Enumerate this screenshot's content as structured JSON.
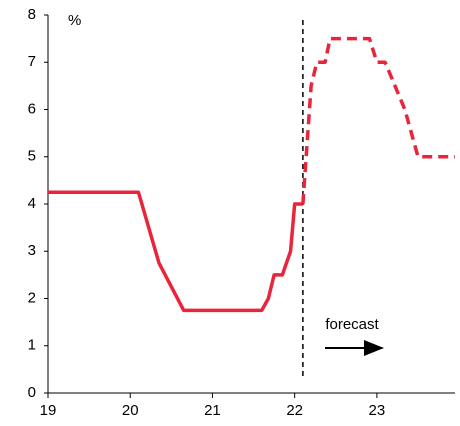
{
  "chart_data": {
    "type": "line",
    "y_unit_label": "%",
    "annotation": "forecast",
    "forecast_start": 22.1,
    "series": [
      {
        "color": "#e8253a",
        "dashed": false,
        "x": [
          19,
          20.1,
          20.35,
          20.65,
          21.6,
          21.68,
          21.75,
          21.85,
          21.95,
          22.0,
          22.1
        ],
        "values": [
          4.25,
          4.25,
          2.75,
          1.75,
          1.75,
          2,
          2.5,
          2.5,
          3,
          4,
          4
        ]
      },
      {
        "color": "#e8253a",
        "dashed": true,
        "x": [
          22.1,
          22.2,
          22.27,
          22.37,
          22.43,
          22.91,
          23.0,
          23.1,
          23.34,
          23.5,
          23.95
        ],
        "values": [
          4,
          6.5,
          7,
          7,
          7.5,
          7.5,
          7,
          7,
          6,
          5,
          5
        ]
      }
    ],
    "xlim": [
      19,
      23.95
    ],
    "xticks": [
      19,
      20,
      21,
      22,
      23
    ],
    "ylim": [
      0,
      8
    ],
    "yticks": [
      0,
      1,
      2,
      3,
      4,
      5,
      6,
      7,
      8
    ]
  }
}
